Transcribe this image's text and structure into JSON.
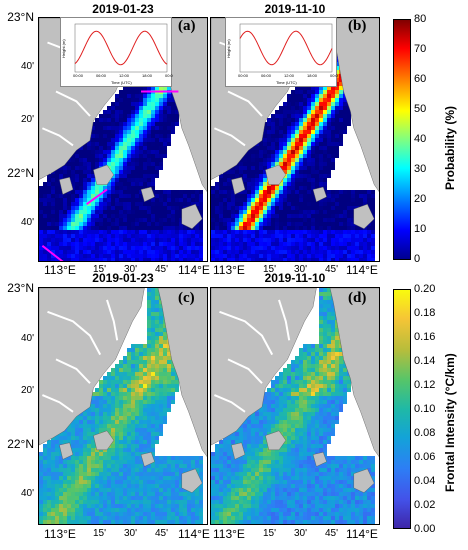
{
  "panels": [
    {
      "title": "2019-01-23",
      "letter": "(a)",
      "field": "probability"
    },
    {
      "title": "2019-11-10",
      "letter": "(b)",
      "field": "probability"
    },
    {
      "title": "2019-01-23",
      "letter": "(c)",
      "field": "frontal_intensity"
    },
    {
      "title": "2019-11-10",
      "letter": "(d)",
      "field": "frontal_intensity"
    }
  ],
  "axes": {
    "y_labels": [
      "23°N",
      "40'",
      "20'",
      "22°N",
      "40'"
    ],
    "x_labels": [
      "113°E",
      "15'",
      "30'",
      "45'",
      "114°E"
    ]
  },
  "colorbar_top": {
    "title": "Probability (%)",
    "ticks": [
      "80",
      "70",
      "60",
      "50",
      "40",
      "30",
      "20",
      "10",
      "0"
    ],
    "range": [
      0,
      80
    ]
  },
  "colorbar_bottom": {
    "title": "Frontal Intensity (°C/km)",
    "ticks": [
      "0.20",
      "0.18",
      "0.16",
      "0.14",
      "0.12",
      "0.10",
      "0.08",
      "0.06",
      "0.04",
      "0.02",
      "0.00"
    ],
    "range": [
      0,
      0.2
    ]
  },
  "inset": {
    "ylabel": "Height (m)",
    "xlabel": "Time (UTC)",
    "xticks": [
      "00:00",
      "06:00",
      "12:00",
      "18:00",
      "00:00"
    ]
  },
  "colors": {
    "land": "#c0c0c0",
    "probability_map": "jet",
    "intensity_map": "parula",
    "tide_curve": "#e02020",
    "transect": "#ff00ff"
  }
}
